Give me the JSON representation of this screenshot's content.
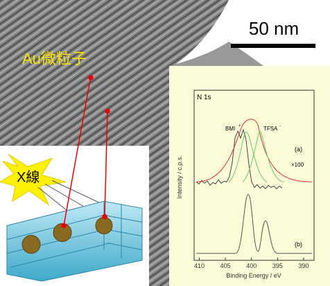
{
  "scale_bar": "50 nm",
  "particle_label": "Au微粒子",
  "xray_label": "X線",
  "chart_data": {
    "type": "line",
    "panel_title": "N 1s",
    "ylabel": "Intensity / c.p.s.",
    "xlabel": "Binding Energy / eV",
    "xlim": [
      411,
      388
    ],
    "xticks": [
      410,
      405,
      400,
      395,
      390
    ],
    "annotations": [
      "BMI",
      "+",
      "TFSA",
      "-",
      "(a)",
      "×100",
      "(b)"
    ]
  }
}
